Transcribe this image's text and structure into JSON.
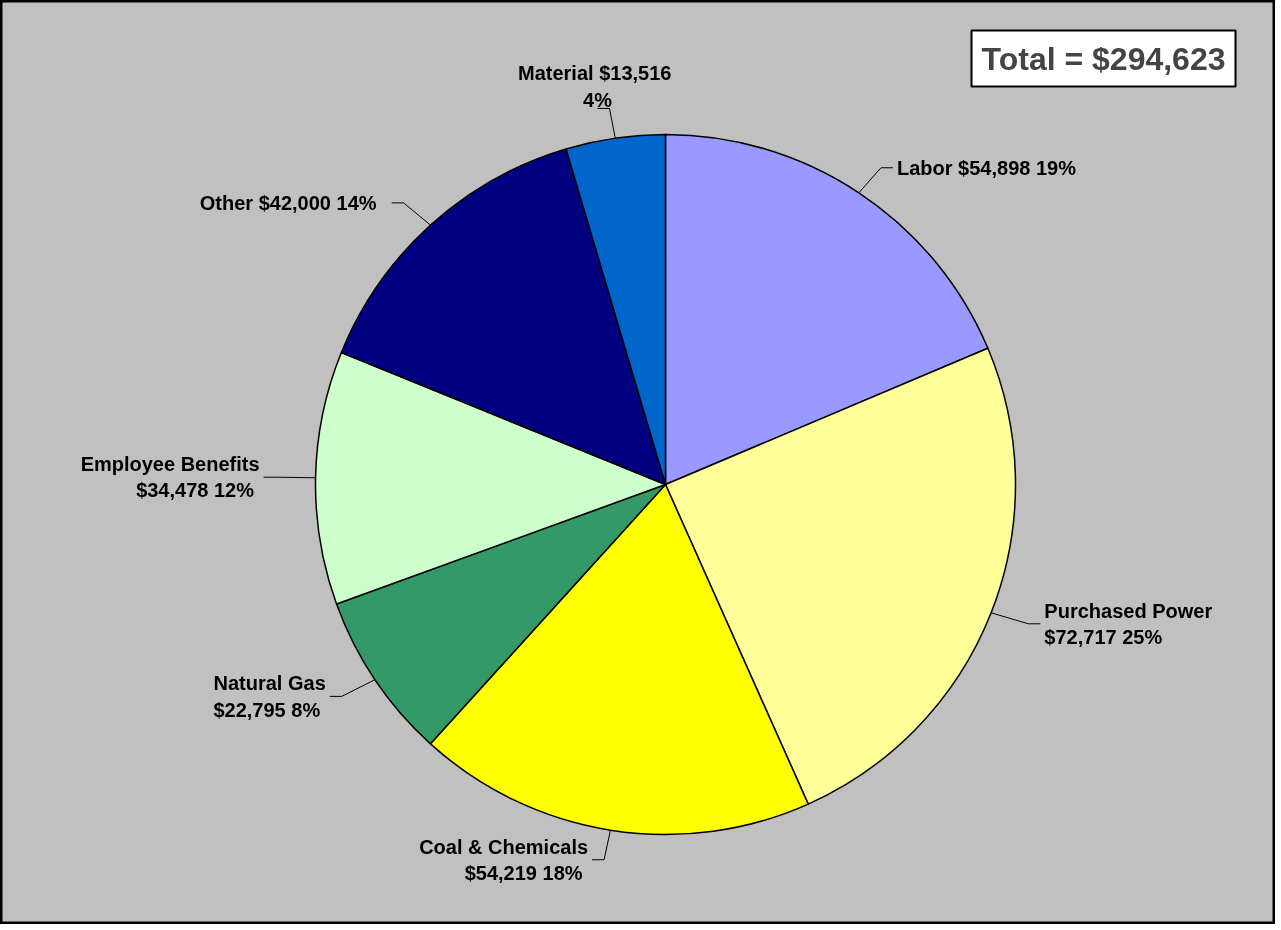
{
  "chart_data": {
    "type": "pie",
    "categories": [
      "Labor",
      "Purchased Power",
      "Coal & Chemicals",
      "Natural Gas",
      "Employee Benefits",
      "Other",
      "Material"
    ],
    "values": [
      54898,
      72717,
      54219,
      22795,
      34478,
      42000,
      13516
    ],
    "value_labels": [
      "$54,898  19%",
      "$72,717  25%",
      "$54,219  18%",
      "$22,795  8%",
      "$34,478  12%",
      "$42,000  14%",
      "$13,516\n4%"
    ],
    "colors": [
      "#9999ff",
      "#ffff99",
      "#ffff00",
      "#339966",
      "#ccffcc",
      "#000080",
      "#0066cc"
    ],
    "annotations": [
      "Total = $294,623"
    ]
  }
}
